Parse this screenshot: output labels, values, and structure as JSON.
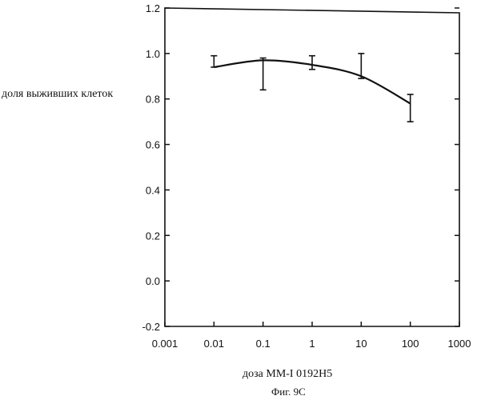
{
  "chart_data": {
    "type": "line",
    "title": "",
    "xlabel": "доза MM-I 0192H5",
    "ylabel": "доля выживших клеток",
    "caption": "Фиг. 9С",
    "xscale": "log",
    "xlim": [
      0.001,
      1000
    ],
    "ylim": [
      -0.2,
      1.2
    ],
    "grid": false,
    "x_ticks": [
      0.001,
      0.01,
      0.1,
      1,
      10,
      100,
      1000
    ],
    "x_tick_labels": [
      "0.001",
      "0.01",
      "0.1",
      "1",
      "10",
      "100",
      "1000"
    ],
    "y_ticks": [
      -0.2,
      0.0,
      0.2,
      0.4,
      0.6,
      0.8,
      1.0,
      1.2
    ],
    "y_tick_labels": [
      "-0.2",
      "0.0",
      "0.2",
      "0.4",
      "0.6",
      "0.8",
      "1.0",
      "1.2"
    ],
    "series": [
      {
        "x": [
          0.01,
          0.1,
          1,
          10,
          100
        ],
        "y": [
          0.94,
          0.97,
          0.95,
          0.9,
          0.78
        ],
        "err_low": [
          0.94,
          0.84,
          0.93,
          0.89,
          0.7
        ],
        "err_high": [
          0.99,
          0.98,
          0.99,
          1.0,
          0.82
        ]
      }
    ]
  }
}
